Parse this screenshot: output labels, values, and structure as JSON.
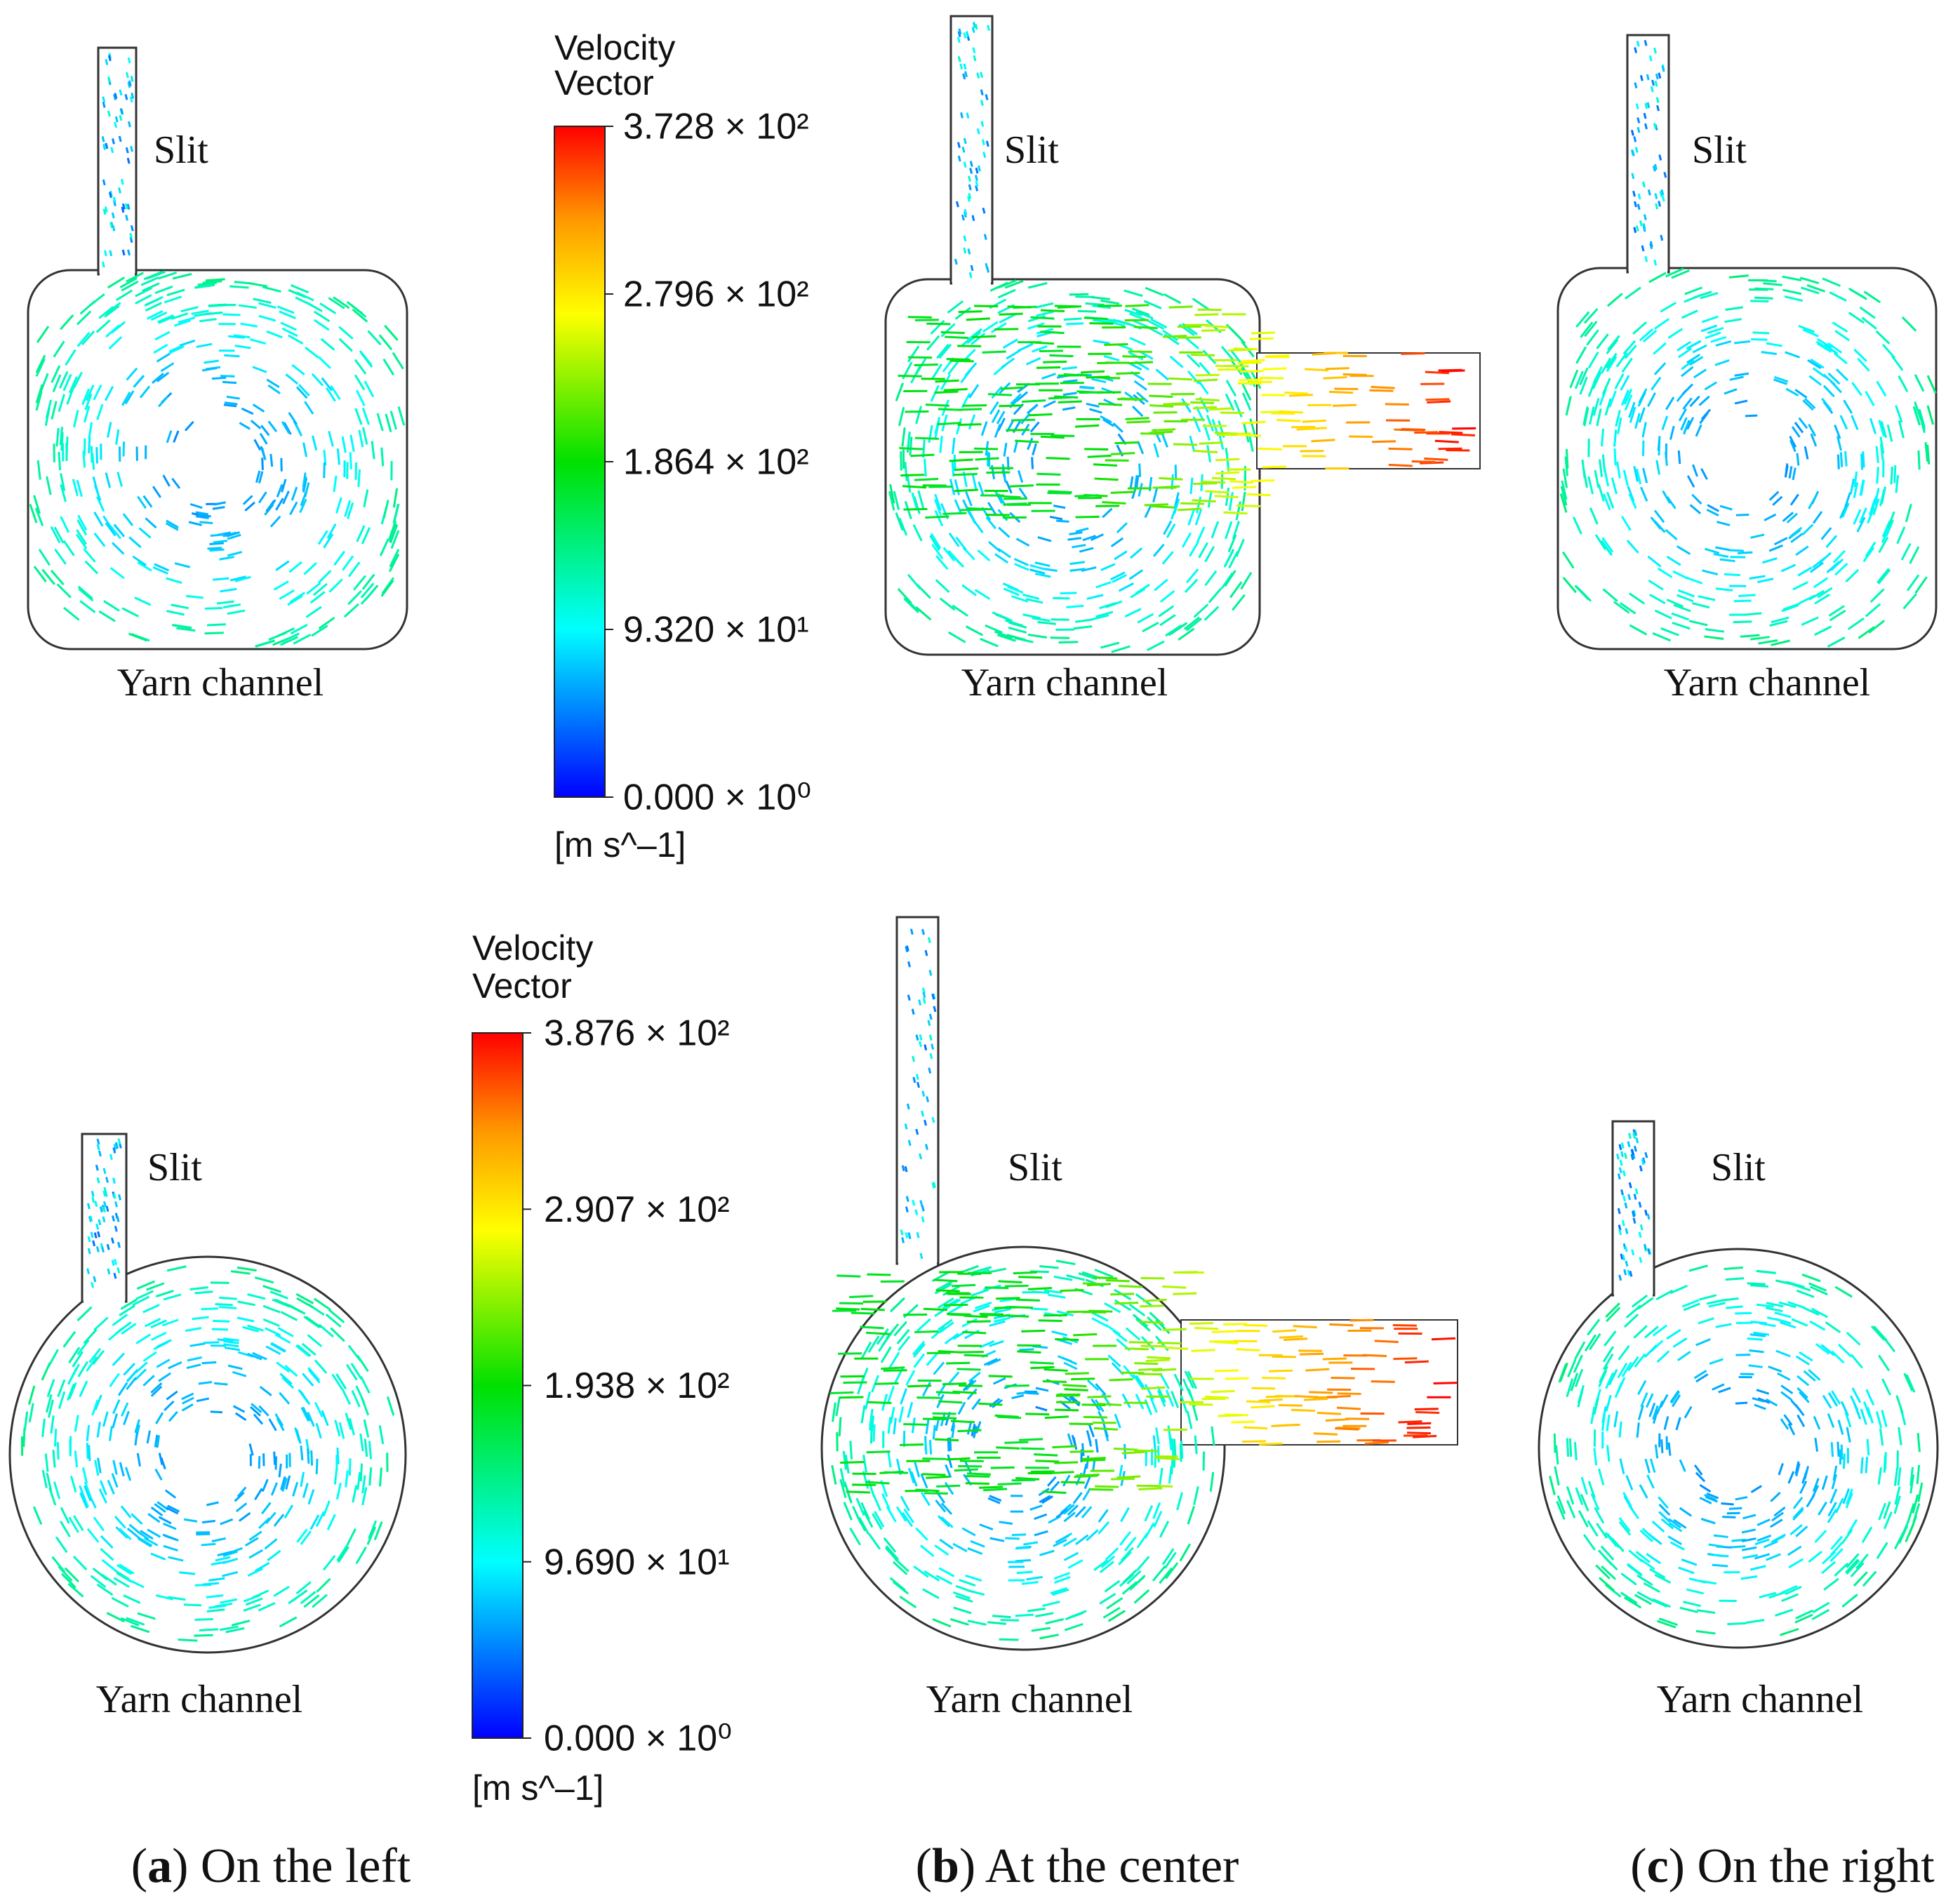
{
  "figure": {
    "rows": [
      {
        "legend": {
          "title": [
            "Velocity",
            "Vector"
          ],
          "ticks": [
            "3.728 × 10²",
            "2.796 × 10²",
            "1.864 × 10²",
            "9.320 × 10¹",
            "0.000 × 10⁰"
          ],
          "unit": "[m s^–1]"
        },
        "panels": [
          {
            "slit": "Slit",
            "channel": "Yarn channel"
          },
          {
            "slit": "Slit",
            "channel": "Yarn channel"
          },
          {
            "slit": "Slit",
            "channel": "Yarn channel"
          }
        ]
      },
      {
        "legend": {
          "title": [
            "Velocity",
            "Vector"
          ],
          "ticks": [
            "3.876 × 10²",
            "2.907 × 10²",
            "1.938 × 10²",
            "9.690 × 10¹",
            "0.000 × 10⁰"
          ],
          "unit": "[m s^–1]"
        },
        "panels": [
          {
            "slit": "Slit",
            "channel": "Yarn channel"
          },
          {
            "slit": "Slit",
            "channel": "Yarn channel"
          },
          {
            "slit": "Slit",
            "channel": "Yarn channel"
          }
        ]
      }
    ],
    "captions": [
      {
        "open": "(",
        "letter": "a",
        "rest": ") On the left"
      },
      {
        "open": "(",
        "letter": "b",
        "rest": ") At the center"
      },
      {
        "open": "(",
        "letter": "c",
        "rest": ") On the right"
      }
    ]
  }
}
